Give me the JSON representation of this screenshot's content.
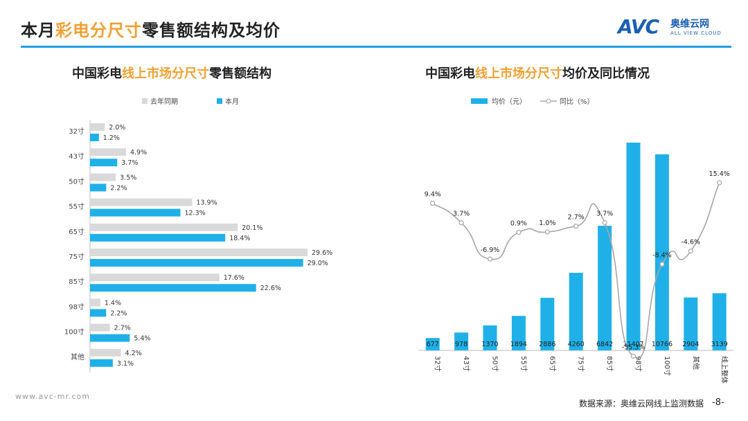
{
  "header": {
    "title_prefix": "本月",
    "title_highlight": "彩电分尺寸",
    "title_suffix": "零售额结构及均价",
    "logo_mark": "AVC",
    "logo_cn": "奥维云网",
    "logo_en": "ALL VIEW CLOUD"
  },
  "left_chart": {
    "title_prefix": "中国彩电",
    "title_highlight": "线上市场分尺寸",
    "title_suffix": "零售额结构"
  },
  "right_chart": {
    "title_prefix": "中国彩电",
    "title_highlight": "线上市场分尺寸",
    "title_suffix": "均价及同比情况"
  },
  "footer": {
    "website": "www.avc-mr.com",
    "source": "数据来源：奥维云网线上监测数据",
    "page": "-8-"
  },
  "colors": {
    "blue": "#1fb0e8",
    "gray": "#d9d9d9",
    "line": "#a6a6a6",
    "accent": "#f0a030"
  },
  "chart_data": [
    {
      "type": "bar",
      "orientation": "horizontal",
      "title": "中国彩电线上市场分尺寸零售额结构",
      "categories": [
        "32寸",
        "43寸",
        "50寸",
        "55寸",
        "65寸",
        "75寸",
        "85寸",
        "98寸",
        "100寸",
        "其他"
      ],
      "series": [
        {
          "name": "去年同期",
          "values": [
            2.0,
            4.9,
            3.5,
            13.9,
            20.1,
            29.6,
            17.6,
            1.4,
            2.7,
            4.2
          ],
          "labels": [
            "2.0%",
            "4.9%",
            "3.5%",
            "13.9%",
            "20.1%",
            "29.6%",
            "17.6%",
            "1.4%",
            "2.7%",
            "4.2%"
          ]
        },
        {
          "name": "本月",
          "values": [
            1.2,
            3.7,
            2.2,
            12.3,
            18.4,
            29.0,
            22.6,
            2.2,
            5.4,
            3.1
          ],
          "labels": [
            "1.2%",
            "3.7%",
            "2.2%",
            "12.3%",
            "18.4%",
            "29.0%",
            "22.6%",
            "2.2%",
            "5.4%",
            "3.1%"
          ]
        }
      ],
      "legend": "top-left"
    },
    {
      "type": "bar",
      "title": "中国彩电线上市场分尺寸均价及同比情况",
      "categories": [
        "32寸",
        "43寸",
        "50寸",
        "55寸",
        "65寸",
        "75寸",
        "85寸",
        "98寸",
        "100寸",
        "其他",
        "线上整体"
      ],
      "series": [
        {
          "name": "均价（元）",
          "type": "bar",
          "values": [
            677,
            978,
            1370,
            1894,
            2886,
            4260,
            6842,
            11407,
            10766,
            2904,
            3139
          ],
          "labels": [
            "677",
            "978",
            "1370",
            "1894",
            "2886",
            "4260",
            "6842",
            "11407",
            "10766",
            "2904",
            "3139"
          ]
        },
        {
          "name": "同比（%）",
          "type": "line",
          "values": [
            9.4,
            3.7,
            -6.9,
            0.9,
            1.0,
            2.7,
            3.7,
            -35.3,
            -8.4,
            -4.6,
            15.4
          ],
          "labels": [
            "9.4%",
            "3.7%",
            "-6.9%",
            "0.9%",
            "1.0%",
            "2.7%",
            "3.7%",
            "-35.3%",
            "-8.4%",
            "-4.6%",
            "15.4%"
          ]
        }
      ],
      "legend": "top"
    }
  ]
}
